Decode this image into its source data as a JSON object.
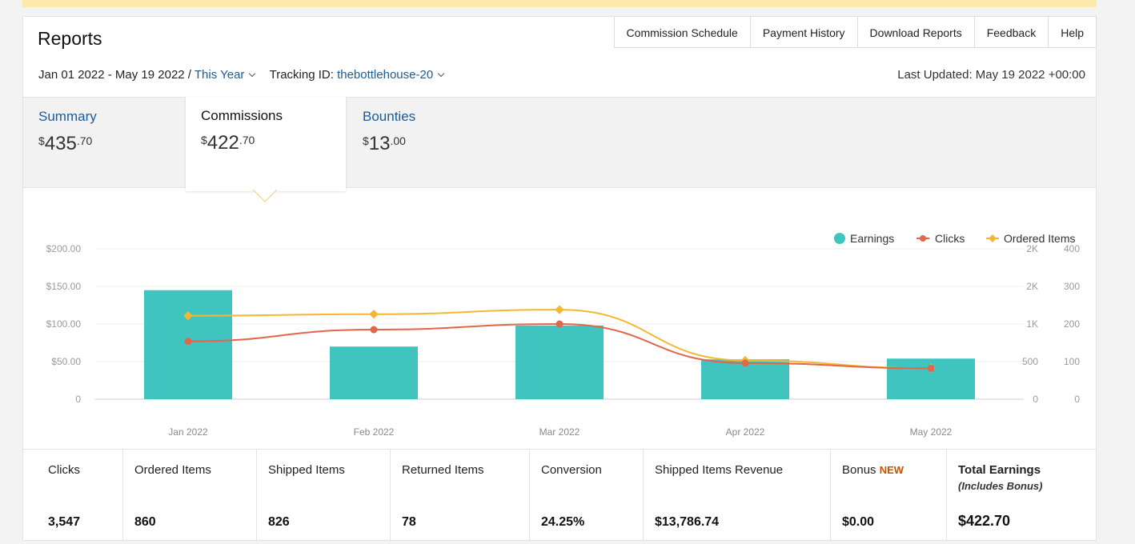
{
  "header": {
    "title": "Reports",
    "tabs": [
      "Commission Schedule",
      "Payment History",
      "Download Reports",
      "Feedback",
      "Help"
    ]
  },
  "filters": {
    "date_range": "Jan 01 2022 - May 19 2022 /",
    "period": "This Year",
    "tracking_label": "Tracking ID:",
    "tracking_id": "thebottlehouse-20",
    "last_updated": "Last Updated: May 19 2022 +00:00"
  },
  "summary": {
    "summary_label": "Summary",
    "summary_dollars": "435",
    "summary_cents": ".70",
    "commissions_label": "Commissions",
    "commissions_dollars": "422",
    "commissions_cents": ".70",
    "bounties_label": "Bounties",
    "bounties_dollars": "13",
    "bounties_cents": ".00",
    "currency": "$"
  },
  "chart_data": {
    "type": "bar",
    "categories": [
      "Jan 2022",
      "Feb 2022",
      "Mar 2022",
      "Apr 2022",
      "May 2022"
    ],
    "series": [
      {
        "name": "Earnings",
        "type": "bar",
        "axis": "left",
        "color": "#40c4bf",
        "values": [
          145,
          70,
          98,
          53,
          54
        ]
      },
      {
        "name": "Clicks",
        "type": "line",
        "axis": "right1",
        "color": "#e2664a",
        "values": [
          770,
          925,
          1000,
          480,
          410
        ]
      },
      {
        "name": "Ordered Items",
        "type": "line",
        "axis": "right2",
        "color": "#f5b731",
        "values": [
          222,
          226,
          238,
          103,
          82
        ]
      }
    ],
    "y_left": {
      "ticks": [
        0,
        50,
        100,
        150,
        200
      ],
      "labels": [
        "0",
        "$50.00",
        "$100.00",
        "$150.00",
        "$200.00"
      ],
      "ylim": [
        0,
        200
      ]
    },
    "y_right1": {
      "ticks": [
        0,
        500,
        1000,
        1500,
        2000
      ],
      "labels": [
        "0",
        "500",
        "1K",
        "2K",
        "2K"
      ],
      "ylim": [
        0,
        2000
      ]
    },
    "y_right2": {
      "ticks": [
        0,
        100,
        200,
        300,
        400
      ],
      "labels": [
        "0",
        "100",
        "200",
        "300",
        "400"
      ],
      "ylim": [
        0,
        400
      ]
    },
    "legend": "top-right",
    "grid": true
  },
  "metrics": [
    {
      "label": "Clicks",
      "value": "3,547"
    },
    {
      "label": "Ordered Items",
      "value": "860"
    },
    {
      "label": "Shipped Items",
      "value": "826"
    },
    {
      "label": "Returned Items",
      "value": "78"
    },
    {
      "label": "Conversion",
      "value": "24.25%"
    },
    {
      "label": "Shipped Items Revenue",
      "value": "$13,786.74"
    },
    {
      "label": "Bonus",
      "badge": "NEW",
      "value": "$0.00"
    },
    {
      "label": "Total Earnings",
      "sub": "(Includes Bonus)",
      "value": "$422.70"
    }
  ]
}
